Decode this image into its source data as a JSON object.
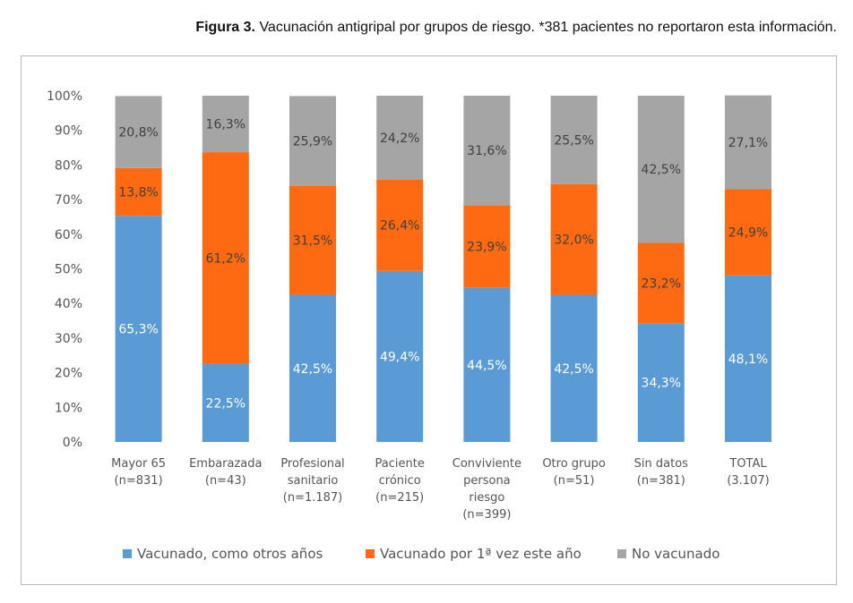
{
  "title": {
    "bold": "Figura 3.",
    "text": " Vacunación antigripal por grupos de riesgo. *381 pacientes no reportaron esta información."
  },
  "chart_data": {
    "type": "bar",
    "stacked": true,
    "categories": [
      [
        "Mayor 65",
        "(n=831)"
      ],
      [
        "Embarazada",
        "(n=43)"
      ],
      [
        "Profesional",
        "sanitario",
        "(n=1.187)"
      ],
      [
        "Paciente",
        "crónico",
        "(n=215)"
      ],
      [
        "Conviviente",
        "persona",
        "riesgo",
        "(n=399)"
      ],
      [
        "Otro grupo",
        "(n=51)"
      ],
      [
        "Sin datos",
        "(n=381)"
      ],
      [
        "TOTAL",
        "(3.107)"
      ]
    ],
    "series": [
      {
        "name": "Vacunado, como otros años",
        "color": "#5b9bd5",
        "label_color": "#ffffff",
        "values": [
          65.3,
          22.5,
          42.5,
          49.4,
          44.5,
          42.5,
          34.3,
          48.1
        ],
        "labels": [
          "65,3%",
          "22,5%",
          "42,5%",
          "49,4%",
          "44,5%",
          "42,5%",
          "34,3%",
          "48,1%"
        ]
      },
      {
        "name": "Vacunado por 1ª vez este año",
        "color": "#fd6a12",
        "label_color": "#404040",
        "values": [
          13.8,
          61.2,
          31.5,
          26.4,
          23.9,
          32.0,
          23.2,
          24.9
        ],
        "labels": [
          "13,8%",
          "61,2%",
          "31,5%",
          "26,4%",
          "23,9%",
          "32,0%",
          "23,2%",
          "24,9%"
        ]
      },
      {
        "name": "No vacunado",
        "color": "#a5a5a5",
        "label_color": "#404040",
        "values": [
          20.8,
          16.3,
          25.9,
          24.2,
          31.6,
          25.5,
          42.5,
          27.1
        ],
        "labels": [
          "20,8%",
          "16,3%",
          "25,9%",
          "24,2%",
          "31,6%",
          "25,5%",
          "42,5%",
          "27,1%"
        ]
      }
    ],
    "yticks": [
      "0%",
      "10%",
      "20%",
      "30%",
      "40%",
      "50%",
      "60%",
      "70%",
      "80%",
      "90%",
      "100%"
    ],
    "ylim": [
      0,
      100
    ],
    "grid": false,
    "legend": "bottom"
  }
}
